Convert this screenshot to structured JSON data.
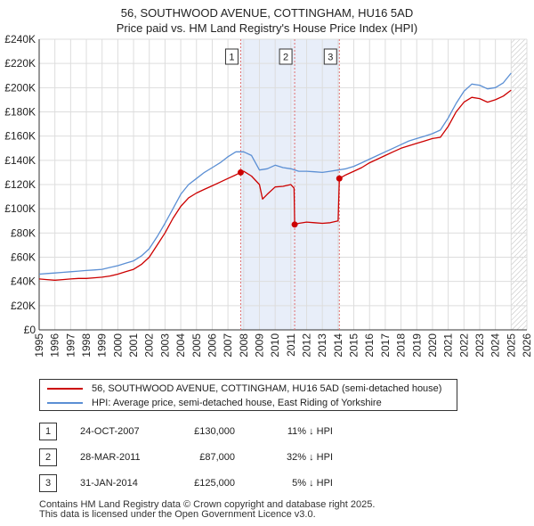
{
  "title": {
    "line1": "56, SOUTHWOOD AVENUE, COTTINGHAM, HU16 5AD",
    "line2": "Price paid vs. HM Land Registry's House Price Index (HPI)"
  },
  "chart_data": {
    "type": "line",
    "title": "Price paid vs. HM Land Registry's House Price Index (HPI)",
    "xlabel": "",
    "ylabel": "",
    "xlim": [
      1995,
      2026
    ],
    "ylim": [
      0,
      240000
    ],
    "grid": true,
    "x_ticks": [
      "1995",
      "1996",
      "1997",
      "1998",
      "1999",
      "2000",
      "2001",
      "2002",
      "2003",
      "2004",
      "2005",
      "2006",
      "2007",
      "2008",
      "2009",
      "2010",
      "2011",
      "2012",
      "2013",
      "2014",
      "2015",
      "2016",
      "2017",
      "2018",
      "2019",
      "2020",
      "2021",
      "2022",
      "2023",
      "2024",
      "2025",
      "2026"
    ],
    "y_ticks": [
      {
        "value": 0,
        "label": "£0"
      },
      {
        "value": 20000,
        "label": "£20K"
      },
      {
        "value": 40000,
        "label": "£40K"
      },
      {
        "value": 60000,
        "label": "£60K"
      },
      {
        "value": 80000,
        "label": "£80K"
      },
      {
        "value": 100000,
        "label": "£100K"
      },
      {
        "value": 120000,
        "label": "£120K"
      },
      {
        "value": 140000,
        "label": "£140K"
      },
      {
        "value": 160000,
        "label": "£160K"
      },
      {
        "value": 180000,
        "label": "£180K"
      },
      {
        "value": 200000,
        "label": "£200K"
      },
      {
        "value": 220000,
        "label": "£220K"
      },
      {
        "value": 240000,
        "label": "£240K"
      }
    ],
    "shaded_ranges": [
      [
        2007.81,
        2014.08
      ]
    ],
    "future_hatch_from": 2025.0,
    "series": [
      {
        "name": "56, SOUTHWOOD AVENUE, COTTINGHAM, HU16 5AD (semi-detached house)",
        "color": "#cc0000",
        "x": [
          1995.0,
          1995.5,
          1996.0,
          1996.5,
          1997.0,
          1997.5,
          1998.0,
          1998.5,
          1999.0,
          1999.5,
          2000.0,
          2000.5,
          2001.0,
          2001.5,
          2002.0,
          2002.5,
          2003.0,
          2003.5,
          2004.0,
          2004.5,
          2005.0,
          2005.5,
          2006.0,
          2006.5,
          2007.0,
          2007.5,
          2007.81,
          2008.0,
          2008.5,
          2009.0,
          2009.2,
          2009.5,
          2010.0,
          2010.5,
          2011.0,
          2011.2,
          2011.24,
          2011.5,
          2012.0,
          2012.5,
          2013.0,
          2013.5,
          2014.0,
          2014.08,
          2014.5,
          2015.0,
          2015.5,
          2016.0,
          2016.5,
          2017.0,
          2017.5,
          2018.0,
          2018.5,
          2019.0,
          2019.5,
          2020.0,
          2020.5,
          2021.0,
          2021.5,
          2022.0,
          2022.5,
          2023.0,
          2023.5,
          2024.0,
          2024.5,
          2025.0
        ],
        "y": [
          42000,
          41500,
          41000,
          41500,
          42000,
          42500,
          42500,
          43000,
          43500,
          44500,
          46000,
          48000,
          50000,
          54000,
          60000,
          70000,
          80000,
          92000,
          102000,
          109000,
          113000,
          116000,
          119000,
          122000,
          125000,
          128000,
          130000,
          131000,
          127000,
          120000,
          108000,
          112000,
          118000,
          118500,
          120000,
          117000,
          87000,
          88000,
          89000,
          88500,
          88000,
          88500,
          90000,
          125000,
          128000,
          131000,
          134000,
          138000,
          141000,
          144000,
          147000,
          150000,
          152000,
          154000,
          156000,
          158000,
          159000,
          168000,
          180000,
          188000,
          192000,
          191000,
          188000,
          190000,
          193000,
          198000
        ]
      },
      {
        "name": "HPI: Average price, semi-detached house, East Riding of Yorkshire",
        "color": "#5b8fd4",
        "x": [
          1995.0,
          1995.5,
          1996.0,
          1996.5,
          1997.0,
          1997.5,
          1998.0,
          1998.5,
          1999.0,
          1999.5,
          2000.0,
          2000.5,
          2001.0,
          2001.5,
          2002.0,
          2002.5,
          2003.0,
          2003.5,
          2004.0,
          2004.5,
          2005.0,
          2005.5,
          2006.0,
          2006.5,
          2007.0,
          2007.5,
          2008.0,
          2008.5,
          2009.0,
          2009.5,
          2010.0,
          2010.5,
          2011.0,
          2011.5,
          2012.0,
          2012.5,
          2013.0,
          2013.5,
          2014.0,
          2014.5,
          2015.0,
          2015.5,
          2016.0,
          2016.5,
          2017.0,
          2017.5,
          2018.0,
          2018.5,
          2019.0,
          2019.5,
          2020.0,
          2020.5,
          2021.0,
          2021.5,
          2022.0,
          2022.5,
          2023.0,
          2023.5,
          2024.0,
          2024.5,
          2025.0
        ],
        "y": [
          46000,
          46500,
          47000,
          47500,
          48000,
          48500,
          49000,
          49500,
          50000,
          51500,
          53000,
          55000,
          57000,
          61000,
          67000,
          77000,
          88000,
          100000,
          112000,
          120000,
          125000,
          130000,
          134000,
          138000,
          143000,
          147000,
          147000,
          144000,
          132000,
          133000,
          136000,
          134000,
          133000,
          131000,
          131000,
          130500,
          130000,
          131000,
          132000,
          133000,
          135000,
          138000,
          141000,
          144000,
          147000,
          150000,
          153000,
          156000,
          158000,
          160000,
          162000,
          165000,
          175000,
          187000,
          197000,
          203000,
          202000,
          199000,
          200000,
          204000,
          212000
        ]
      }
    ],
    "sales": [
      {
        "label": "1",
        "x": 2007.81,
        "y": 130000
      },
      {
        "label": "2",
        "x": 2011.24,
        "y": 87000
      },
      {
        "label": "3",
        "x": 2014.08,
        "y": 125000
      }
    ]
  },
  "legend": {
    "items": [
      {
        "label": "56, SOUTHWOOD AVENUE, COTTINGHAM, HU16 5AD (semi-detached house)",
        "color": "#cc0000"
      },
      {
        "label": "HPI: Average price, semi-detached house, East Riding of Yorkshire",
        "color": "#5b8fd4"
      }
    ]
  },
  "sales_table": [
    {
      "num": "1",
      "date": "24-OCT-2007",
      "price": "£130,000",
      "delta": "11% ↓ HPI"
    },
    {
      "num": "2",
      "date": "28-MAR-2011",
      "price": "£87,000",
      "delta": "32% ↓ HPI"
    },
    {
      "num": "3",
      "date": "31-JAN-2014",
      "price": "£125,000",
      "delta": "5% ↓ HPI"
    }
  ],
  "footer": {
    "line1": "Contains HM Land Registry data © Crown copyright and database right 2025.",
    "line2": "This data is licensed under the Open Government Licence v3.0."
  }
}
